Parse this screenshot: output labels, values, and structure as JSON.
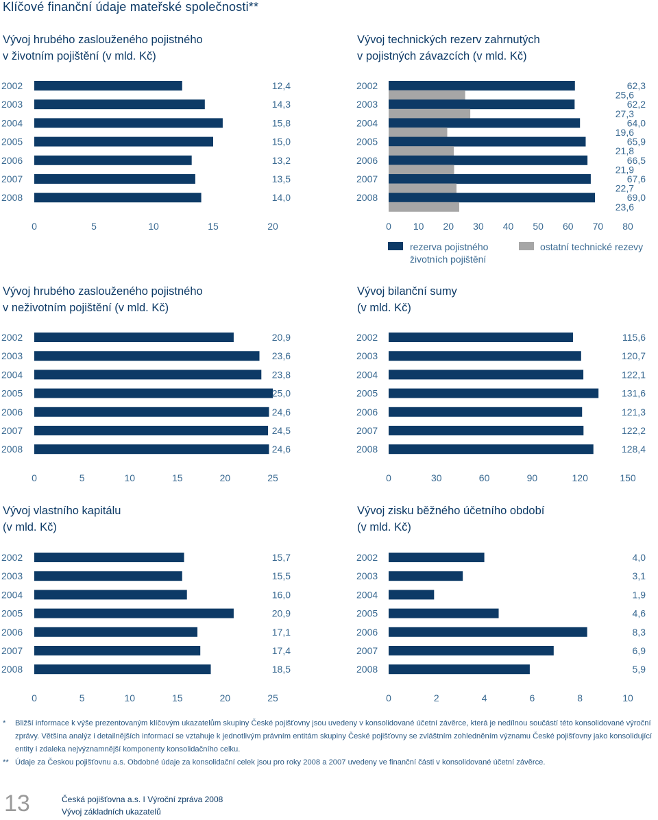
{
  "page_title": "Klíčové finanční údaje mateřské společnosti**",
  "chart_data": [
    {
      "id": "c1",
      "type": "bar",
      "title_lines": [
        "Vývoj hrubého zaslouženého pojistného",
        "v životním pojištění (v mld. Kč)"
      ],
      "categories": [
        "2002",
        "2003",
        "2004",
        "2005",
        "2006",
        "2007",
        "2008"
      ],
      "series": [
        {
          "name": "",
          "values": [
            12.4,
            14.3,
            15.8,
            15.0,
            13.2,
            13.5,
            14.0
          ],
          "labels": [
            "12,4",
            "14,3",
            "15,8",
            "15,0",
            "13,2",
            "13,5",
            "14,0"
          ],
          "color": "#0d3a66"
        }
      ],
      "xlim": [
        0,
        20
      ],
      "ticks": [
        "0",
        "5",
        "10",
        "15",
        "20"
      ],
      "xlabel": "",
      "ylabel": ""
    },
    {
      "id": "c2",
      "type": "bar",
      "title_lines": [
        "Vývoj technických rezerv zahrnutých",
        "v pojistných závazcích (v mld. Kč)"
      ],
      "categories": [
        "2002",
        "2003",
        "2004",
        "2005",
        "2006",
        "2007",
        "2008"
      ],
      "series": [
        {
          "name": "rezerva pojistného životních pojištění",
          "values": [
            62.3,
            62.2,
            64.0,
            65.9,
            66.5,
            67.6,
            69.0
          ],
          "labels": [
            "62,3",
            "62,2",
            "64,0",
            "65,9",
            "66,5",
            "67,6",
            "69,0"
          ],
          "color": "#0d3a66"
        },
        {
          "name": "ostatní technické rezevy",
          "values": [
            25.6,
            27.3,
            19.6,
            21.8,
            21.9,
            22.7,
            23.6
          ],
          "labels": [
            "25,6",
            "27,3",
            "19,6",
            "21,8",
            "21,9",
            "22,7",
            "23,6"
          ],
          "color": "#a6a6a6"
        }
      ],
      "xlim": [
        0,
        80
      ],
      "ticks": [
        "0",
        "10",
        "20",
        "30",
        "40",
        "50",
        "60",
        "70",
        "80"
      ],
      "legend": [
        {
          "lines": [
            "rezerva pojistného",
            "životních pojištění"
          ],
          "color": "#0d3a66"
        },
        {
          "lines": [
            "ostatní technické rezevy"
          ],
          "color": "#a6a6a6"
        }
      ]
    },
    {
      "id": "c3",
      "type": "bar",
      "title_lines": [
        "Vývoj hrubého zaslouženého pojistného",
        "v neživotním pojištění (v mld. Kč)"
      ],
      "categories": [
        "2002",
        "2003",
        "2004",
        "2005",
        "2006",
        "2007",
        "2008"
      ],
      "series": [
        {
          "name": "",
          "values": [
            20.9,
            23.6,
            23.8,
            25.0,
            24.6,
            24.5,
            24.6
          ],
          "labels": [
            "20,9",
            "23,6",
            "23,8",
            "25,0",
            "24,6",
            "24,5",
            "24,6"
          ],
          "color": "#0d3a66"
        }
      ],
      "xlim": [
        0,
        25
      ],
      "ticks": [
        "0",
        "5",
        "10",
        "15",
        "20",
        "25"
      ]
    },
    {
      "id": "c4",
      "type": "bar",
      "title_lines": [
        "Vývoj bilanční sumy",
        "(v mld. Kč)"
      ],
      "categories": [
        "2002",
        "2003",
        "2004",
        "2005",
        "2006",
        "2007",
        "2008"
      ],
      "series": [
        {
          "name": "",
          "values": [
            115.6,
            120.7,
            122.1,
            131.6,
            121.3,
            122.2,
            128.4
          ],
          "labels": [
            "115,6",
            "120,7",
            "122,1",
            "131,6",
            "121,3",
            "122,2",
            "128,4"
          ],
          "color": "#0d3a66"
        }
      ],
      "xlim": [
        0,
        150
      ],
      "ticks": [
        "0",
        "30",
        "60",
        "90",
        "120",
        "150"
      ]
    },
    {
      "id": "c5",
      "type": "bar",
      "title_lines": [
        "Vývoj vlastního kapitálu",
        "(v mld. Kč)"
      ],
      "categories": [
        "2002",
        "2003",
        "2004",
        "2005",
        "2006",
        "2007",
        "2008"
      ],
      "series": [
        {
          "name": "",
          "values": [
            15.7,
            15.5,
            16.0,
            20.9,
            17.1,
            17.4,
            18.5
          ],
          "labels": [
            "15,7",
            "15,5",
            "16,0",
            "20,9",
            "17,1",
            "17,4",
            "18,5"
          ],
          "color": "#0d3a66"
        }
      ],
      "xlim": [
        0,
        25
      ],
      "ticks": [
        "0",
        "5",
        "10",
        "15",
        "20",
        "25"
      ]
    },
    {
      "id": "c6",
      "type": "bar",
      "title_lines": [
        "Vývoj zisku běžného účetního období",
        "(v mld. Kč)"
      ],
      "categories": [
        "2002",
        "2003",
        "2004",
        "2005",
        "2006",
        "2007",
        "2008"
      ],
      "series": [
        {
          "name": "",
          "values": [
            4.0,
            3.1,
            1.9,
            4.6,
            8.3,
            6.9,
            5.9
          ],
          "labels": [
            "4,0",
            "3,1",
            "1,9",
            "4,6",
            "8,3",
            "6,9",
            "5,9"
          ],
          "color": "#0d3a66"
        }
      ],
      "xlim": [
        0,
        10
      ],
      "ticks": [
        "0",
        "2",
        "4",
        "6",
        "8",
        "10"
      ]
    }
  ],
  "footnotes": [
    {
      "mark": "*",
      "text": "Bližší informace k výše prezentovaným klíčovým ukazatelům skupiny České pojišťovny jsou uvedeny v konsolidované účetní závěrce, která je nedílnou součástí této konsolidované výroční zprávy. Většina analýz i detailnějších informací se vztahuje k jednotlivým právním entitám skupiny České pojišťovny se zvláštním zohledněním významu České pojišťovny jako konsolidující entity i zdaleka nejvýznamnější komponenty konsolidačního celku."
    },
    {
      "mark": "**",
      "text": "Údaje za Českou pojišťovnu a.s. Obdobné údaje za konsolidační celek jsou pro roky 2008 a 2007 uvedeny ve finanční části v konsolidované účetní závěrce."
    }
  ],
  "footer": {
    "page_number": "13",
    "line1": "Česká pojišťovna a.s.  I  Výroční zpráva 2008",
    "line2": "Vývoj základních ukazatelů"
  }
}
